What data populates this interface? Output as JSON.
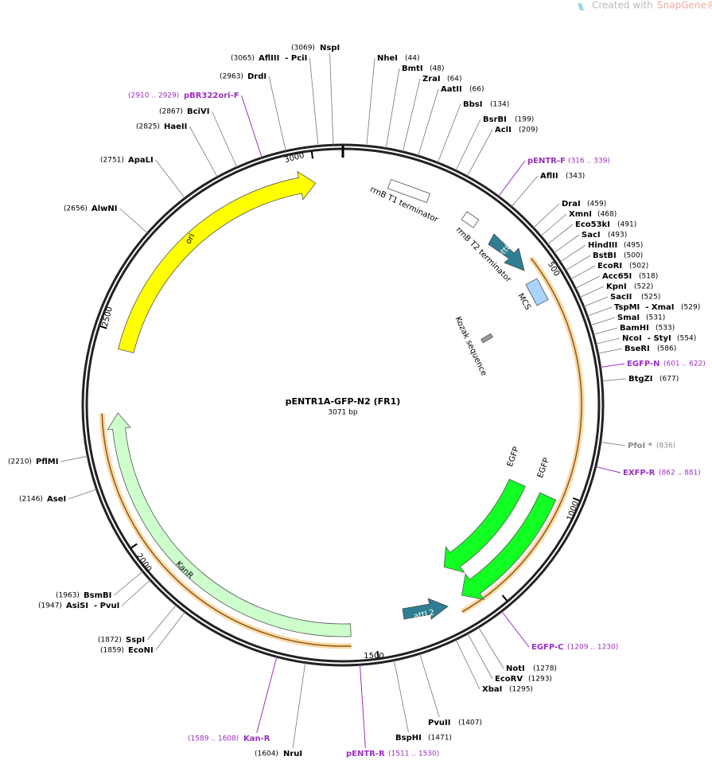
{
  "watermark": {
    "prefix": "Created with",
    "brand": "SnapGene®"
  },
  "title": "pENTR1A-GFP-N2 (FR1)",
  "length": "3071 bp",
  "ruler": [
    "500",
    "1000",
    "1500",
    "2000",
    "2500",
    "3000"
  ],
  "features": [
    {
      "label": "ori"
    },
    {
      "label": "KanR"
    },
    {
      "label": "EGFP"
    },
    {
      "label": "EGFP"
    },
    {
      "label": "MCS"
    },
    {
      "label": "attL1"
    },
    {
      "label": "attL2"
    },
    {
      "label": "rrnB T1 terminator"
    },
    {
      "label": "rrnB T2 terminator"
    },
    {
      "label": "Kozak sequence"
    }
  ],
  "enzymes": [
    {
      "name": "NspI",
      "position": "(3069)"
    },
    {
      "name": "AflIII  - PciI",
      "position": "(3065)"
    },
    {
      "name": "DrdI",
      "position": "(2963)"
    },
    {
      "name": "BciVI",
      "position": "(2867)"
    },
    {
      "name": "HaeII",
      "position": "(2825)"
    },
    {
      "name": "ApaLI",
      "position": "(2751)"
    },
    {
      "name": "AlwNI",
      "position": "(2656)"
    },
    {
      "name": "PflMI",
      "position": "(2210)"
    },
    {
      "name": "AseI",
      "position": "(2146)"
    },
    {
      "name": "BsmBI",
      "position": "(1963)"
    },
    {
      "name": "AsiSI  - PvuI",
      "position": "(1947)"
    },
    {
      "name": "SspI",
      "position": "(1872)"
    },
    {
      "name": "EcoNI",
      "position": "(1859)"
    },
    {
      "name": "NruI",
      "position": "(1604)"
    },
    {
      "name": "NheI",
      "position": "(44)"
    },
    {
      "name": "BmtI",
      "position": "(48)"
    },
    {
      "name": "ZraI",
      "position": "(64)"
    },
    {
      "name": "AatII",
      "position": "(66)"
    },
    {
      "name": "BbsI",
      "position": "(134)"
    },
    {
      "name": "BsrBI",
      "position": "(199)"
    },
    {
      "name": "AclI",
      "position": "(209)"
    },
    {
      "name": "AflII",
      "position": "(343)"
    },
    {
      "name": "DraI",
      "position": "(459)"
    },
    {
      "name": "XmnI",
      "position": "(468)"
    },
    {
      "name": "Eco53kI",
      "position": "(491)"
    },
    {
      "name": "SacI",
      "position": "(493)"
    },
    {
      "name": "HindIII",
      "position": "(495)"
    },
    {
      "name": "BstBI",
      "position": "(500)"
    },
    {
      "name": "EcoRI",
      "position": "(502)"
    },
    {
      "name": "Acc65I",
      "position": "(518)"
    },
    {
      "name": "KpnI",
      "position": "(522)"
    },
    {
      "name": "SacII",
      "position": "(525)"
    },
    {
      "name": "TspMI  - XmaI",
      "position": "(529)"
    },
    {
      "name": "SmaI",
      "position": "(531)"
    },
    {
      "name": "BamHI",
      "position": "(533)"
    },
    {
      "name": "NcoI  - StyI",
      "position": "(554)"
    },
    {
      "name": "BseRI",
      "position": "(586)"
    },
    {
      "name": "BtgZI",
      "position": "(677)"
    },
    {
      "name": "PfoI *",
      "position": "(836)"
    },
    {
      "name": "NotI",
      "position": "(1278)"
    },
    {
      "name": "EcoRV",
      "position": "(1293)"
    },
    {
      "name": "XbaI",
      "position": "(1295)"
    },
    {
      "name": "PvuII",
      "position": "(1407)"
    },
    {
      "name": "BspHI",
      "position": "(1471)"
    }
  ],
  "primers": [
    {
      "name": "pBR322ori-F",
      "range": "(2910 .. 2929)"
    },
    {
      "name": "pENTR-F",
      "range": "(316 .. 339)"
    },
    {
      "name": "EGFP-N",
      "range": "(601 .. 622)"
    },
    {
      "name": "EXFP-R",
      "range": "(862 .. 881)"
    },
    {
      "name": "EGFP-C",
      "range": "(1209 .. 1230)"
    },
    {
      "name": "Kan-R",
      "range": "(1589 .. 1608)"
    },
    {
      "name": "pENTR-R",
      "range": "(1511 .. 1530)"
    }
  ]
}
